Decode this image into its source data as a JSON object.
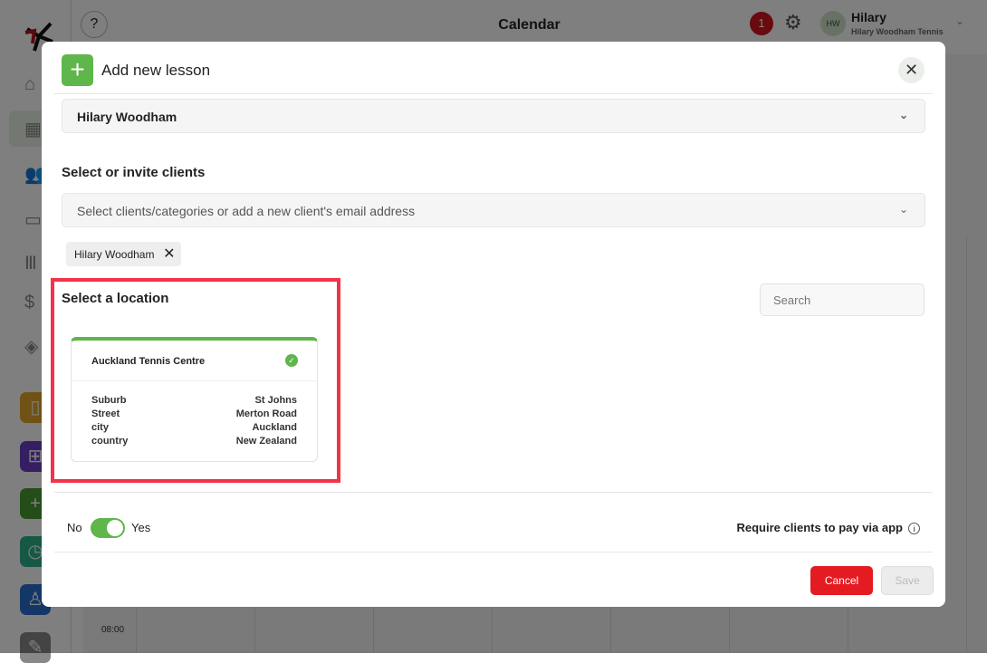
{
  "header": {
    "title": "Calendar",
    "help": "?",
    "notifications": "1",
    "avatar": "HW",
    "user_name": "Hilary",
    "user_org": "Hilary Woodham Tennis"
  },
  "calendar": {
    "time_label": "08:00"
  },
  "modal": {
    "title": "Add new lesson",
    "coach_value": "Hilary Woodham",
    "clients_label": "Select or invite clients",
    "clients_placeholder": "Select clients/categories or add a new client's email address",
    "selected_client": "Hilary Woodham",
    "location_label": "Select a location",
    "search_placeholder": "Search",
    "location": {
      "name": "Auckland Tennis Centre",
      "selected": true,
      "fields": [
        {
          "label": "Suburb",
          "value": "St Johns"
        },
        {
          "label": "Street",
          "value": "Merton Road"
        },
        {
          "label": "city",
          "value": "Auckland"
        },
        {
          "label": "country",
          "value": "New Zealand"
        }
      ]
    },
    "toggle": {
      "off_label": "No",
      "on_label": "Yes",
      "value": true,
      "label": "Require clients to pay via app"
    },
    "cancel": "Cancel",
    "save": "Save"
  },
  "colors": {
    "accent": "#5fb64a",
    "danger": "#e51b22",
    "highlight": "#f2334a"
  }
}
